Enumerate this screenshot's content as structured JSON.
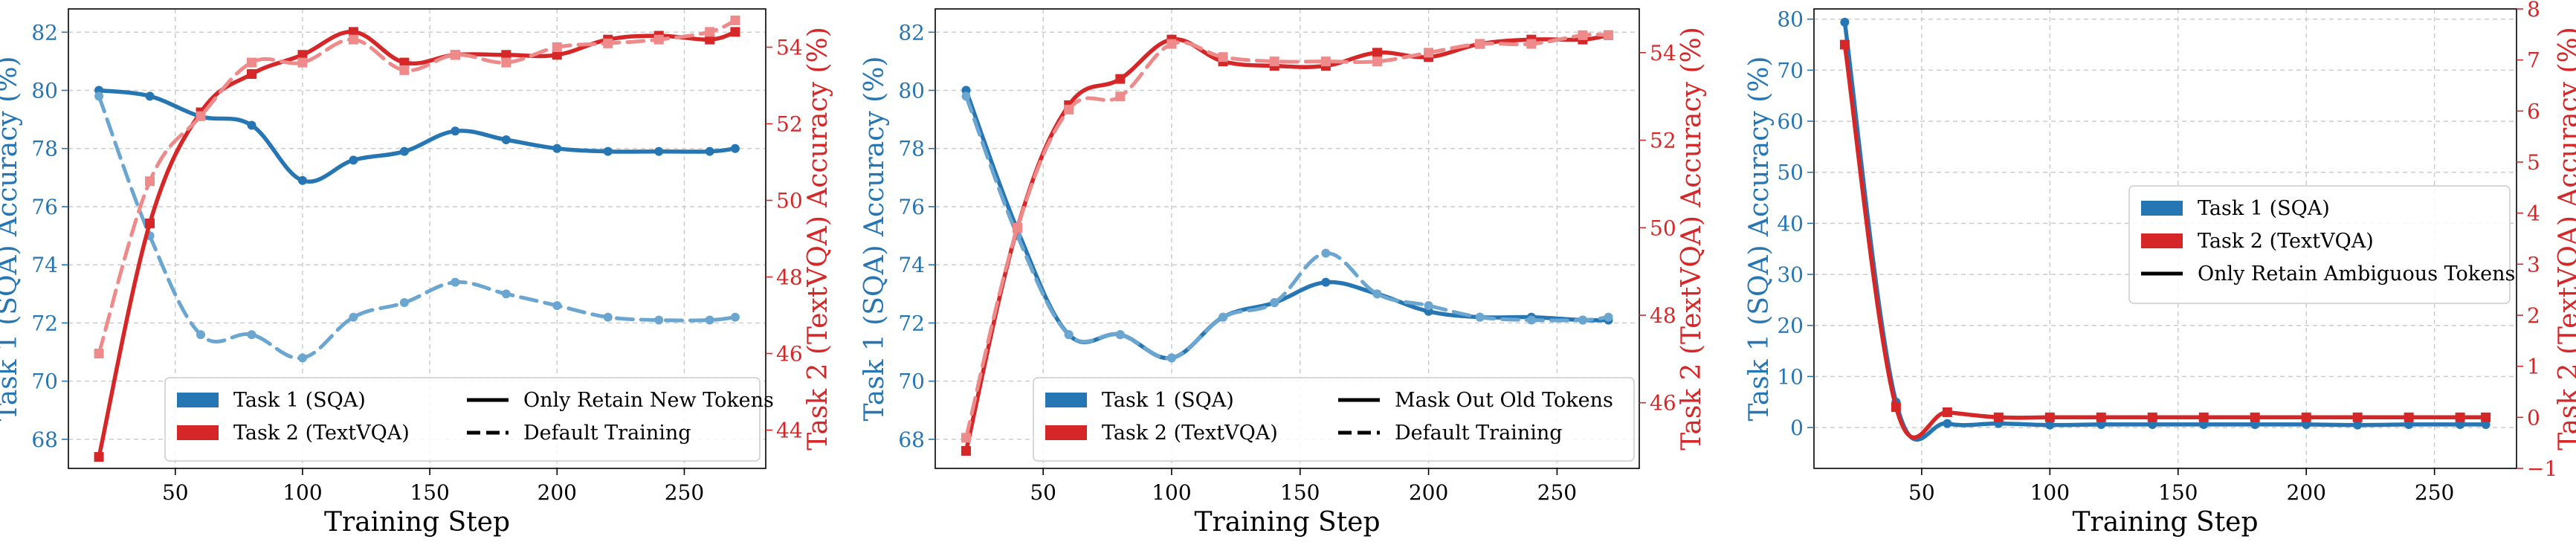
{
  "colors": {
    "blue": "#2776b4",
    "blue_light": "#6aa6cf",
    "red": "#d62728",
    "red_light": "#ee8a8a",
    "frame": "#000000"
  },
  "chart_data": [
    {
      "type": "line",
      "id": "panel1",
      "xlabel": "Training Step",
      "ylabel_left": "Task 1 (SQA) Accuracy (%)",
      "ylabel_right": "Task 2 (TextVQA) Accuracy (%)",
      "xlim": [
        8,
        282
      ],
      "ylim_left": [
        67,
        82.8
      ],
      "ylim_right": [
        43.0,
        55.0
      ],
      "xticks": [
        50,
        100,
        150,
        200,
        250
      ],
      "yticks_left": [
        68,
        70,
        72,
        74,
        76,
        78,
        80,
        82
      ],
      "yticks_right": [
        44,
        46,
        48,
        50,
        52,
        54
      ],
      "x": [
        20,
        40,
        60,
        80,
        100,
        120,
        140,
        160,
        180,
        200,
        220,
        240,
        260,
        270
      ],
      "series": [
        {
          "name": "Task 1 (SQA) - Only Retain New Tokens",
          "axis": "left",
          "color": "blue",
          "style": "solid",
          "values": [
            80.0,
            79.8,
            79.1,
            78.8,
            76.9,
            77.6,
            77.9,
            78.6,
            78.3,
            78.0,
            77.9,
            77.9,
            77.9,
            78.0
          ]
        },
        {
          "name": "Task 1 (SQA) - Default Training",
          "axis": "left",
          "color": "blue_light",
          "style": "dashed",
          "values": [
            79.8,
            75.0,
            71.6,
            71.6,
            70.8,
            72.2,
            72.7,
            73.4,
            73.0,
            72.6,
            72.2,
            72.1,
            72.1,
            72.2
          ]
        },
        {
          "name": "Task 2 (TextVQA) - Only Retain New Tokens",
          "axis": "right",
          "color": "red",
          "style": "solid",
          "values": [
            43.3,
            49.4,
            52.3,
            53.3,
            53.8,
            54.4,
            53.6,
            53.8,
            53.8,
            53.8,
            54.2,
            54.3,
            54.2,
            54.4
          ]
        },
        {
          "name": "Task 2 (TextVQA) - Default Training",
          "axis": "right",
          "color": "red_light",
          "style": "dashed",
          "values": [
            46.0,
            50.5,
            52.2,
            53.6,
            53.6,
            54.2,
            53.4,
            53.8,
            53.6,
            54.0,
            54.1,
            54.2,
            54.4,
            54.7
          ]
        }
      ],
      "legend": {
        "position": "lower-right",
        "entries": [
          {
            "label": "Task 1 (SQA)",
            "kind": "patch",
            "color": "blue"
          },
          {
            "label": "Only Retain New Tokens",
            "kind": "line",
            "style": "solid"
          },
          {
            "label": "Task 2 (TextVQA)",
            "kind": "patch",
            "color": "red"
          },
          {
            "label": "Default Training",
            "kind": "line",
            "style": "dashed"
          }
        ]
      }
    },
    {
      "type": "line",
      "id": "panel2",
      "xlabel": "Training Step",
      "ylabel_left": "Task 1 (SQA) Accuracy (%)",
      "ylabel_right": "Task 2 (TextVQA) Accuracy (%)",
      "xlim": [
        8,
        282
      ],
      "ylim_left": [
        67,
        82.8
      ],
      "ylim_right": [
        44.5,
        55.0
      ],
      "xticks": [
        50,
        100,
        150,
        200,
        250
      ],
      "yticks_left": [
        68,
        70,
        72,
        74,
        76,
        78,
        80,
        82
      ],
      "yticks_right": [
        46,
        48,
        50,
        52,
        54
      ],
      "x": [
        20,
        40,
        60,
        80,
        100,
        120,
        140,
        160,
        180,
        200,
        220,
        240,
        260,
        270
      ],
      "series": [
        {
          "name": "Task 1 (SQA) - Mask Out Old Tokens",
          "axis": "left",
          "color": "blue",
          "style": "solid",
          "values": [
            80.0,
            75.2,
            71.6,
            71.6,
            70.8,
            72.2,
            72.7,
            73.4,
            73.0,
            72.4,
            72.2,
            72.2,
            72.1,
            72.1
          ]
        },
        {
          "name": "Task 1 (SQA) - Default Training",
          "axis": "left",
          "color": "blue_light",
          "style": "dashed",
          "values": [
            79.8,
            75.0,
            71.6,
            71.6,
            70.8,
            72.2,
            72.7,
            74.4,
            73.0,
            72.6,
            72.2,
            72.1,
            72.1,
            72.2
          ]
        },
        {
          "name": "Task 2 (TextVQA) - Mask Out Old Tokens",
          "axis": "right",
          "color": "red",
          "style": "solid",
          "values": [
            44.9,
            50.0,
            52.8,
            53.4,
            54.3,
            53.8,
            53.7,
            53.7,
            54.0,
            53.9,
            54.2,
            54.3,
            54.3,
            54.4
          ]
        },
        {
          "name": "Task 2 (TextVQA) - Default Training",
          "axis": "right",
          "color": "red_light",
          "style": "dashed",
          "values": [
            45.2,
            50.0,
            52.7,
            53.0,
            54.2,
            53.9,
            53.8,
            53.8,
            53.8,
            54.0,
            54.2,
            54.2,
            54.4,
            54.4
          ]
        }
      ],
      "legend": {
        "position": "lower-right",
        "entries": [
          {
            "label": "Task 1 (SQA)",
            "kind": "patch",
            "color": "blue"
          },
          {
            "label": "Mask Out Old Tokens",
            "kind": "line",
            "style": "solid"
          },
          {
            "label": "Task 2 (TextVQA)",
            "kind": "patch",
            "color": "red"
          },
          {
            "label": "Default Training",
            "kind": "line",
            "style": "dashed"
          }
        ]
      }
    },
    {
      "type": "line",
      "id": "panel3",
      "xlabel": "Training Step",
      "ylabel_left": "Task 1 (SQA) Accuracy (%)",
      "ylabel_right": "Task 2 (TextVQA) Accuracy (%)",
      "xlim": [
        8,
        282
      ],
      "ylim_left": [
        -8,
        82
      ],
      "ylim_right": [
        -1,
        8
      ],
      "xticks": [
        50,
        100,
        150,
        200,
        250
      ],
      "yticks_left": [
        0,
        10,
        20,
        30,
        40,
        50,
        60,
        70,
        80
      ],
      "yticks_right": [
        -1,
        0,
        1,
        2,
        3,
        4,
        5,
        6,
        7,
        8
      ],
      "x": [
        20,
        40,
        60,
        80,
        100,
        120,
        140,
        160,
        180,
        200,
        220,
        240,
        260,
        270
      ],
      "series": [
        {
          "name": "Task 1 (SQA) - Only Retain Ambiguous Tokens",
          "axis": "left",
          "color": "blue",
          "style": "solid",
          "values": [
            79.4,
            5.0,
            0.8,
            0.8,
            0.5,
            0.6,
            0.6,
            0.6,
            0.6,
            0.6,
            0.5,
            0.6,
            0.6,
            0.6
          ]
        },
        {
          "name": "Task 2 (TextVQA) - Only Retain Ambiguous Tokens",
          "axis": "right",
          "color": "red",
          "style": "solid",
          "values": [
            7.3,
            0.2,
            0.1,
            0.0,
            0.0,
            0.0,
            0.0,
            0.0,
            0.0,
            0.0,
            0.0,
            0.0,
            0.0,
            0.0
          ]
        }
      ],
      "legend": {
        "position": "center-right",
        "entries": [
          {
            "label": "Task 1 (SQA)",
            "kind": "patch",
            "color": "blue"
          },
          {
            "label": "Task 2 (TextVQA)",
            "kind": "patch",
            "color": "red"
          },
          {
            "label": "Only Retain Ambiguous Tokens",
            "kind": "line",
            "style": "solid"
          }
        ]
      }
    }
  ]
}
